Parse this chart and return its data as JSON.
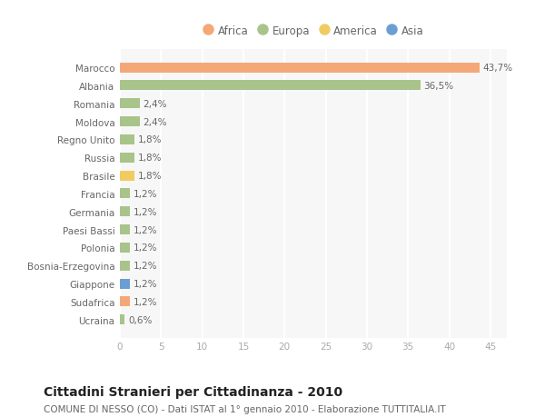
{
  "countries": [
    "Marocco",
    "Albania",
    "Romania",
    "Moldova",
    "Regno Unito",
    "Russia",
    "Brasile",
    "Francia",
    "Germania",
    "Paesi Bassi",
    "Polonia",
    "Bosnia-Erzegovina",
    "Giappone",
    "Sudafrica",
    "Ucraina"
  ],
  "values": [
    43.7,
    36.5,
    2.4,
    2.4,
    1.8,
    1.8,
    1.8,
    1.2,
    1.2,
    1.2,
    1.2,
    1.2,
    1.2,
    1.2,
    0.6
  ],
  "labels": [
    "43,7%",
    "36,5%",
    "2,4%",
    "2,4%",
    "1,8%",
    "1,8%",
    "1,8%",
    "1,2%",
    "1,2%",
    "1,2%",
    "1,2%",
    "1,2%",
    "1,2%",
    "1,2%",
    "0,6%"
  ],
  "continents": [
    "Africa",
    "Europa",
    "Europa",
    "Europa",
    "Europa",
    "Europa",
    "America",
    "Europa",
    "Europa",
    "Europa",
    "Europa",
    "Europa",
    "Asia",
    "Africa",
    "Europa"
  ],
  "continent_colors": {
    "Africa": "#F4A878",
    "Europa": "#A8C48A",
    "America": "#F0CC60",
    "Asia": "#6B9FD4"
  },
  "legend_order": [
    "Africa",
    "Europa",
    "America",
    "Asia"
  ],
  "title": "Cittadini Stranieri per Cittadinanza - 2010",
  "subtitle": "COMUNE DI NESSO (CO) - Dati ISTAT al 1° gennaio 2010 - Elaborazione TUTTITALIA.IT",
  "xlim": [
    0,
    47
  ],
  "xticks": [
    0,
    5,
    10,
    15,
    20,
    25,
    30,
    35,
    40,
    45
  ],
  "background_color": "#ffffff",
  "plot_bg_color": "#f7f7f7",
  "grid_color": "#ffffff",
  "bar_height": 0.55,
  "title_fontsize": 10,
  "subtitle_fontsize": 7.5,
  "tick_fontsize": 7.5,
  "label_fontsize": 7.5,
  "legend_fontsize": 8.5
}
